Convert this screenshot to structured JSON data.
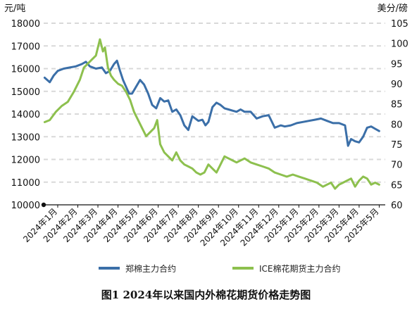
{
  "caption": "图1 2024年以来国内外棉花期货价格走势图",
  "chart_data": {
    "type": "line",
    "title": "图1 2024年以来国内外棉花期货价格走势图",
    "left_unit": "元/吨",
    "right_unit": "美分/磅",
    "left_axis": {
      "ylim": [
        10000,
        18000
      ],
      "ticks": [
        10000,
        11000,
        12000,
        13000,
        14000,
        15000,
        16000,
        17000,
        18000
      ]
    },
    "right_axis": {
      "ylim": [
        60,
        105
      ],
      "ticks": [
        60,
        65,
        70,
        75,
        80,
        85,
        90,
        95,
        100,
        105
      ]
    },
    "x_labels": [
      "2024年1月",
      "2024年2月",
      "2024年3月",
      "2024年4月",
      "2024年5月",
      "2024年6月",
      "2024年7月",
      "2024年8月",
      "2024年9月",
      "2024年10月",
      "2024年11月",
      "2024年12月",
      "2025年1月",
      "2025年2月",
      "2025年3月",
      "2025年4月",
      "2025年5月"
    ],
    "x_range": [
      0,
      17
    ],
    "grid": true,
    "legend_position": "bottom",
    "series": [
      {
        "name": "郑棉主力合约",
        "axis": "left",
        "color": "#3b6fa8",
        "x": [
          0.05,
          0.3,
          0.5,
          0.7,
          1.0,
          1.3,
          1.6,
          1.9,
          2.1,
          2.3,
          2.6,
          2.9,
          3.1,
          3.3,
          3.5,
          3.65,
          3.8,
          3.95,
          4.1,
          4.25,
          4.4,
          4.6,
          4.8,
          5.0,
          5.2,
          5.4,
          5.6,
          5.8,
          6.0,
          6.2,
          6.4,
          6.6,
          6.8,
          7.0,
          7.2,
          7.4,
          7.55,
          7.7,
          7.9,
          8.05,
          8.2,
          8.4,
          8.6,
          8.8,
          9.0,
          9.2,
          9.4,
          9.6,
          9.8,
          10.0,
          10.3,
          10.6,
          10.9,
          11.2,
          11.5,
          11.8,
          12.0,
          12.3,
          12.6,
          12.9,
          13.2,
          13.5,
          13.8,
          14.1,
          14.4,
          14.7,
          15.0,
          15.15,
          15.3,
          15.5,
          15.7,
          15.9,
          16.1,
          16.3,
          16.5,
          16.7
        ],
        "values": [
          15600,
          15400,
          15700,
          15900,
          16000,
          16050,
          16100,
          16200,
          16300,
          16100,
          16000,
          16050,
          15800,
          15900,
          16200,
          16350,
          15900,
          15500,
          15200,
          14900,
          14900,
          15200,
          15500,
          15300,
          14900,
          14400,
          14250,
          14700,
          14550,
          14600,
          14100,
          14200,
          13950,
          13500,
          13300,
          13900,
          13800,
          13700,
          13750,
          13500,
          13650,
          14300,
          14500,
          14400,
          14250,
          14200,
          14150,
          14100,
          14200,
          14100,
          14100,
          13800,
          13900,
          13950,
          13400,
          13500,
          13450,
          13500,
          13600,
          13650,
          13700,
          13750,
          13800,
          13700,
          13600,
          13600,
          13500,
          12600,
          12900,
          12800,
          12750,
          13000,
          13400,
          13450,
          13350,
          13250
        ]
      },
      {
        "name": "ICE棉花期货主力合约",
        "axis": "right",
        "color": "#8dc04e",
        "x": [
          0.05,
          0.3,
          0.6,
          0.9,
          1.2,
          1.5,
          1.8,
          2.0,
          2.2,
          2.4,
          2.6,
          2.8,
          2.95,
          3.05,
          3.2,
          3.35,
          3.5,
          3.7,
          3.9,
          4.1,
          4.3,
          4.5,
          4.7,
          4.9,
          5.1,
          5.3,
          5.5,
          5.65,
          5.8,
          6.0,
          6.2,
          6.4,
          6.6,
          6.8,
          7.0,
          7.2,
          7.4,
          7.6,
          7.8,
          8.0,
          8.2,
          8.4,
          8.6,
          8.8,
          9.0,
          9.2,
          9.4,
          9.6,
          9.8,
          10.0,
          10.3,
          10.6,
          10.9,
          11.2,
          11.5,
          11.8,
          12.1,
          12.4,
          12.7,
          13.0,
          13.3,
          13.6,
          13.9,
          14.1,
          14.3,
          14.5,
          14.7,
          14.9,
          15.1,
          15.3,
          15.5,
          15.7,
          15.9,
          16.1,
          16.3,
          16.5,
          16.7
        ],
        "values": [
          80.5,
          81,
          83,
          84.5,
          85.5,
          88,
          91,
          94,
          95,
          96,
          97,
          101,
          98,
          99,
          94,
          92,
          91,
          90,
          89.5,
          88,
          86,
          83,
          81,
          79,
          77,
          78,
          79,
          81,
          75,
          73,
          72,
          71,
          73,
          71,
          70,
          69.5,
          69,
          68,
          67.5,
          68,
          70,
          69,
          68,
          70,
          72,
          71.5,
          71,
          70.5,
          71,
          71.5,
          70.5,
          70,
          69.5,
          69,
          68,
          67.5,
          67,
          67.5,
          67,
          66.5,
          66,
          65.5,
          64.5,
          65,
          65.5,
          64,
          65,
          65.5,
          66,
          66.5,
          64.5,
          66,
          67,
          66.5,
          65,
          65.5,
          65
        ]
      }
    ]
  }
}
